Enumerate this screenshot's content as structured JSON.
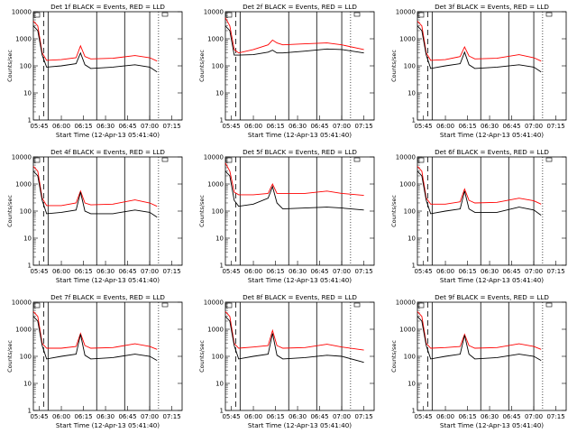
{
  "xlabel": "Start Time (12-Apr-13 05:41:40)",
  "ylabel": "Counts/sec",
  "xticks": [
    "05:45",
    "06:00",
    "06:15",
    "06:30",
    "06:45",
    "07:00",
    "07:15"
  ],
  "yticks": [
    "1",
    "10",
    "100",
    "1000",
    "10000"
  ],
  "colors": {
    "events": "#000000",
    "lld": "#ff0000"
  },
  "chart_data": [
    {
      "type": "line",
      "title": "Det  1f  BLACK = Events, RED = LLD",
      "x": [
        "05:41",
        "05:44",
        "05:47",
        "05:50",
        "06:00",
        "06:10",
        "06:13",
        "06:16",
        "06:20",
        "06:35",
        "06:50",
        "07:00",
        "07:05"
      ],
      "series": [
        {
          "name": "Events",
          "color": "#000000",
          "values": [
            3000,
            2000,
            250,
            90,
            100,
            120,
            300,
            110,
            80,
            90,
            110,
            90,
            60
          ]
        },
        {
          "name": "LLD",
          "color": "#ff0000",
          "values": [
            4500,
            3000,
            300,
            160,
            170,
            200,
            550,
            220,
            180,
            190,
            240,
            200,
            150
          ]
        }
      ],
      "ylim": [
        1,
        10000
      ],
      "yscale": "log"
    },
    {
      "type": "line",
      "title": "Det  2f  BLACK = Events, RED = LLD",
      "x": [
        "05:41",
        "05:44",
        "05:47",
        "05:50",
        "06:00",
        "06:10",
        "06:13",
        "06:16",
        "06:20",
        "06:35",
        "06:50",
        "07:00",
        "07:15"
      ],
      "series": [
        {
          "name": "Events",
          "color": "#000000",
          "values": [
            3000,
            2000,
            250,
            250,
            260,
            320,
            380,
            300,
            300,
            350,
            420,
            400,
            300
          ]
        },
        {
          "name": "LLD",
          "color": "#ff0000",
          "values": [
            6000,
            3000,
            400,
            300,
            400,
            600,
            900,
            700,
            600,
            650,
            700,
            600,
            400
          ]
        }
      ],
      "ylim": [
        1,
        10000
      ],
      "yscale": "log"
    },
    {
      "type": "line",
      "title": "Det  3f  BLACK = Events, RED = LLD",
      "x": [
        "05:41",
        "05:44",
        "05:47",
        "05:50",
        "06:00",
        "06:10",
        "06:13",
        "06:16",
        "06:20",
        "06:35",
        "06:50",
        "07:00",
        "07:05"
      ],
      "series": [
        {
          "name": "Events",
          "color": "#000000",
          "values": [
            3000,
            2000,
            250,
            80,
            100,
            120,
            320,
            110,
            80,
            90,
            110,
            90,
            60
          ]
        },
        {
          "name": "LLD",
          "color": "#ff0000",
          "values": [
            4500,
            3000,
            300,
            160,
            170,
            220,
            500,
            230,
            180,
            190,
            260,
            200,
            150
          ]
        }
      ],
      "ylim": [
        1,
        10000
      ],
      "yscale": "log"
    },
    {
      "type": "line",
      "title": "Det  4f  BLACK = Events, RED = LLD",
      "x": [
        "05:41",
        "05:44",
        "05:47",
        "05:50",
        "06:00",
        "06:10",
        "06:13",
        "06:16",
        "06:20",
        "06:35",
        "06:50",
        "07:00",
        "07:05"
      ],
      "series": [
        {
          "name": "Events",
          "color": "#000000",
          "values": [
            3000,
            2000,
            250,
            80,
            90,
            110,
            500,
            100,
            80,
            80,
            110,
            90,
            60
          ]
        },
        {
          "name": "LLD",
          "color": "#ff0000",
          "values": [
            4500,
            3000,
            300,
            160,
            160,
            200,
            550,
            200,
            170,
            180,
            260,
            200,
            150
          ]
        }
      ],
      "ylim": [
        1,
        10000
      ],
      "yscale": "log"
    },
    {
      "type": "line",
      "title": "Det  5f  BLACK = Events, RED = LLD",
      "x": [
        "05:41",
        "05:44",
        "05:47",
        "05:50",
        "06:00",
        "06:10",
        "06:13",
        "06:16",
        "06:20",
        "06:35",
        "06:50",
        "07:00",
        "07:15"
      ],
      "series": [
        {
          "name": "Events",
          "color": "#000000",
          "values": [
            3000,
            2000,
            250,
            150,
            180,
            300,
            800,
            200,
            120,
            130,
            140,
            130,
            110
          ]
        },
        {
          "name": "LLD",
          "color": "#ff0000",
          "values": [
            6000,
            3000,
            500,
            400,
            400,
            450,
            1000,
            450,
            450,
            450,
            550,
            450,
            380
          ]
        }
      ],
      "ylim": [
        1,
        10000
      ],
      "yscale": "log"
    },
    {
      "type": "line",
      "title": "Det  6f  BLACK = Events, RED = LLD",
      "x": [
        "05:41",
        "05:44",
        "05:47",
        "05:50",
        "06:00",
        "06:10",
        "06:13",
        "06:16",
        "06:20",
        "06:35",
        "06:50",
        "07:00",
        "07:05"
      ],
      "series": [
        {
          "name": "Events",
          "color": "#000000",
          "values": [
            3000,
            2000,
            250,
            80,
            100,
            120,
            550,
            120,
            90,
            90,
            140,
            110,
            70
          ]
        },
        {
          "name": "LLD",
          "color": "#ff0000",
          "values": [
            4500,
            3000,
            300,
            180,
            180,
            220,
            650,
            250,
            200,
            210,
            300,
            240,
            180
          ]
        }
      ],
      "ylim": [
        1,
        10000
      ],
      "yscale": "log"
    },
    {
      "type": "line",
      "title": "Det  7f  BLACK = Events, RED = LLD",
      "x": [
        "05:41",
        "05:44",
        "05:47",
        "05:50",
        "06:00",
        "06:10",
        "06:13",
        "06:16",
        "06:20",
        "06:35",
        "06:50",
        "07:00",
        "07:05"
      ],
      "series": [
        {
          "name": "Events",
          "color": "#000000",
          "values": [
            3000,
            2000,
            250,
            80,
            100,
            120,
            650,
            110,
            80,
            90,
            120,
            100,
            70
          ]
        },
        {
          "name": "LLD",
          "color": "#ff0000",
          "values": [
            4500,
            3000,
            300,
            200,
            200,
            230,
            700,
            250,
            200,
            210,
            290,
            230,
            180
          ]
        }
      ],
      "ylim": [
        1,
        10000
      ],
      "yscale": "log"
    },
    {
      "type": "line",
      "title": "Det  8f  BLACK = Events, RED = LLD",
      "x": [
        "05:41",
        "05:44",
        "05:47",
        "05:50",
        "06:00",
        "06:10",
        "06:13",
        "06:16",
        "06:20",
        "06:35",
        "06:50",
        "07:00",
        "07:15"
      ],
      "series": [
        {
          "name": "Events",
          "color": "#000000",
          "values": [
            3000,
            2000,
            250,
            80,
            100,
            120,
            700,
            110,
            80,
            90,
            110,
            100,
            60
          ]
        },
        {
          "name": "LLD",
          "color": "#ff0000",
          "values": [
            4500,
            3000,
            300,
            200,
            220,
            250,
            900,
            250,
            200,
            210,
            280,
            220,
            170
          ]
        }
      ],
      "ylim": [
        1,
        10000
      ],
      "yscale": "log"
    },
    {
      "type": "line",
      "title": "Det  9f  BLACK = Events, RED = LLD",
      "x": [
        "05:41",
        "05:44",
        "05:47",
        "05:50",
        "06:00",
        "06:10",
        "06:13",
        "06:16",
        "06:20",
        "06:35",
        "06:50",
        "07:00",
        "07:05"
      ],
      "series": [
        {
          "name": "Events",
          "color": "#000000",
          "values": [
            3000,
            2000,
            250,
            80,
            100,
            120,
            600,
            120,
            80,
            90,
            120,
            100,
            70
          ]
        },
        {
          "name": "LLD",
          "color": "#ff0000",
          "values": [
            4500,
            3000,
            300,
            200,
            210,
            230,
            650,
            250,
            200,
            210,
            290,
            230,
            180
          ]
        }
      ],
      "ylim": [
        1,
        10000
      ],
      "yscale": "log"
    }
  ]
}
